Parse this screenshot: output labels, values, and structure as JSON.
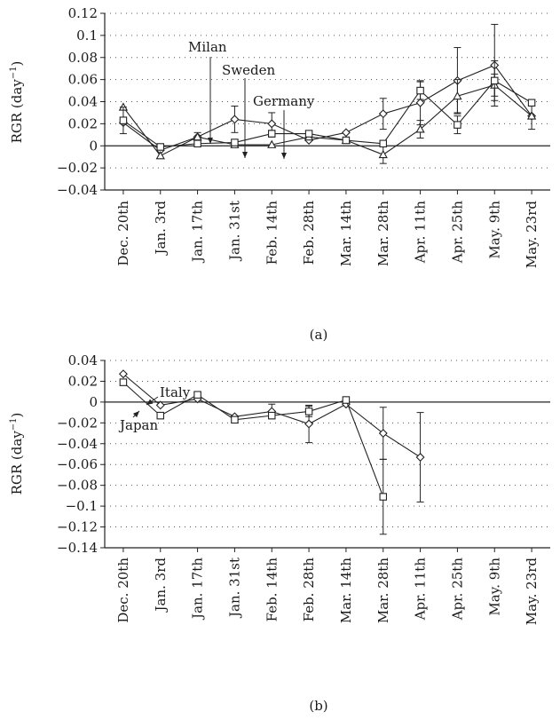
{
  "chart_data": [
    {
      "type": "line",
      "panel_label": "(a)",
      "ylabel": "RGR (day",
      "ylabel_sup": "−1",
      "ylabel_close": ")",
      "ylim": [
        -0.04,
        0.12
      ],
      "yticks": [
        -0.04,
        -0.02,
        0,
        0.02,
        0.04,
        0.06,
        0.08,
        0.1,
        0.12
      ],
      "ytick_labels": [
        "−0.04",
        "−0.02",
        "0",
        "0.02",
        "0.04",
        "0.06",
        "0.08",
        "0.1",
        "0.12"
      ],
      "grid": "horizontal dotted",
      "categories": [
        "Dec. 20th",
        "Jan. 3rd",
        "Jan. 17th",
        "Jan. 31st",
        "Feb. 14th",
        "Feb. 28th",
        "Mar. 14th",
        "Mar. 28th",
        "Apr. 11th",
        "Apr. 25th",
        "May. 9th",
        "May. 23rd"
      ],
      "series": [
        {
          "name": "Milan",
          "marker": "diamond",
          "values": [
            0.021,
            -0.004,
            0.008,
            0.024,
            0.02,
            0.005,
            0.012,
            0.029,
            0.039,
            0.059,
            0.073,
            0.027
          ],
          "errors": [
            0,
            0,
            0.004,
            0.012,
            0.01,
            0,
            0,
            0.014,
            0.02,
            0.03,
            0.037,
            0.012
          ]
        },
        {
          "name": "Sweden",
          "marker": "triangle",
          "values": [
            0.035,
            -0.009,
            0.008,
            0.001,
            0.001,
            0.008,
            0.005,
            -0.008,
            0.015,
            0.045,
            0.055,
            0.027
          ],
          "errors": [
            0,
            0,
            0,
            0,
            0,
            0,
            0,
            0.008,
            0.008,
            0.015,
            0.01,
            0
          ]
        },
        {
          "name": "Germany",
          "marker": "square",
          "values": [
            0.023,
            -0.001,
            0.002,
            0.003,
            0.011,
            0.011,
            0.005,
            0.002,
            0.05,
            0.019,
            0.059,
            0.039
          ],
          "errors": [
            0.012,
            0,
            0,
            0,
            0.003,
            0,
            0,
            0,
            0.008,
            0.008,
            0.018,
            0
          ]
        }
      ],
      "annotations": [
        {
          "text": "Milan",
          "target_series": "Milan",
          "target_category": "Jan. 31st"
        },
        {
          "text": "Sweden",
          "target_series": "Sweden",
          "target_category": "Feb. 14th"
        },
        {
          "text": "Germany",
          "target_series": "Germany",
          "target_category": "Feb. 28th"
        }
      ]
    },
    {
      "type": "line",
      "panel_label": "(b)",
      "ylabel": "RGR (day",
      "ylabel_sup": "−1",
      "ylabel_close": ")",
      "ylim": [
        -0.14,
        0.04
      ],
      "yticks": [
        -0.14,
        -0.12,
        -0.1,
        -0.08,
        -0.06,
        -0.04,
        -0.02,
        0,
        0.02,
        0.04
      ],
      "ytick_labels": [
        "−0.14",
        "−0.12",
        "−0.1",
        "−0.08",
        "−0.06",
        "−0.04",
        "−0.02",
        "0",
        "0.02",
        "0.04"
      ],
      "grid": "horizontal dotted",
      "categories": [
        "Dec. 20th",
        "Jan. 3rd",
        "Jan. 17th",
        "Jan. 31st",
        "Feb. 14th",
        "Feb. 28th",
        "Mar. 14th",
        "Mar. 28th",
        "Apr. 11th",
        "Apr. 25th",
        "May. 9th",
        "May. 23rd"
      ],
      "series": [
        {
          "name": "Italy",
          "marker": "diamond",
          "values": [
            0.027,
            -0.003,
            0.003,
            -0.014,
            -0.009,
            -0.021,
            -0.002,
            -0.03,
            -0.053,
            null,
            null,
            null
          ],
          "errors": [
            0,
            0,
            0,
            0,
            0.007,
            0.018,
            0,
            0.025,
            0.043,
            0,
            0,
            0
          ]
        },
        {
          "name": "Japan",
          "marker": "square",
          "values": [
            0.019,
            -0.013,
            0.007,
            -0.017,
            -0.013,
            -0.009,
            0.002,
            -0.091,
            null,
            null,
            null,
            null
          ],
          "errors": [
            0.003,
            0.003,
            0,
            0.002,
            0.003,
            0.005,
            0.003,
            0.036,
            0,
            0,
            0,
            0
          ]
        }
      ],
      "annotations": [
        {
          "text": "Italy",
          "target_series": "Italy",
          "target_category": "Jan. 3rd"
        },
        {
          "text": "Japan",
          "target_series": "Japan",
          "target_category": "Jan. 3rd"
        }
      ]
    }
  ]
}
